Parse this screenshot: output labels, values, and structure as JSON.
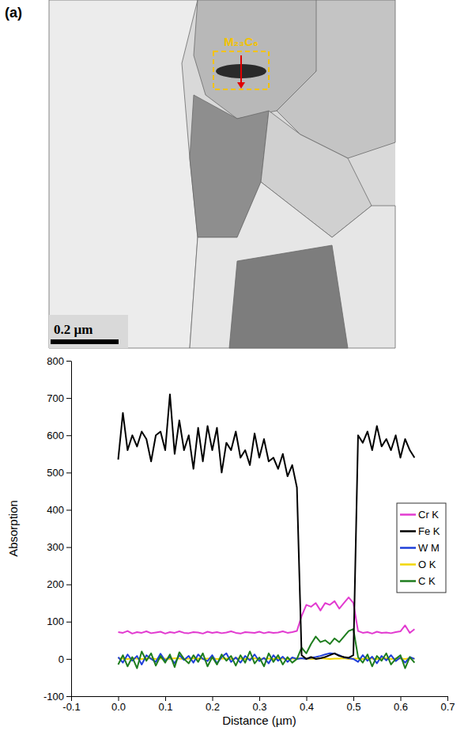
{
  "image_panel": {
    "panel_label": "(a)",
    "annotation": "M₂₃C₆",
    "scale_bar": "0.2 µm"
  },
  "chart_data": {
    "type": "line",
    "x_label": "Distance (µm)",
    "y_label": "Absorption",
    "xlim": [
      -0.1,
      0.7
    ],
    "xticks": [
      -0.1,
      {
        "value": 0,
        "label": "0.0"
      },
      0.1,
      0.2,
      0.3,
      0.4,
      0.5,
      0.6,
      0.7
    ],
    "ylim": [
      -100,
      800
    ],
    "yticks": [
      -100,
      0,
      100,
      200,
      300,
      400,
      500,
      600,
      700,
      800
    ],
    "legend": "right",
    "x": [
      0,
      0.01,
      0.02,
      0.03,
      0.04,
      0.05,
      0.06,
      0.07,
      0.08,
      0.09,
      0.1,
      0.11,
      0.12,
      0.13,
      0.14,
      0.15,
      0.16,
      0.17,
      0.18,
      0.19,
      0.2,
      0.21,
      0.22,
      0.23,
      0.24,
      0.25,
      0.26,
      0.27,
      0.28,
      0.29,
      0.3,
      0.31,
      0.32,
      0.33,
      0.34,
      0.35,
      0.36,
      0.37,
      0.38,
      0.39,
      0.4,
      0.41,
      0.42,
      0.43,
      0.44,
      0.45,
      0.46,
      0.47,
      0.48,
      0.49,
      0.5,
      0.51,
      0.52,
      0.53,
      0.54,
      0.55,
      0.56,
      0.57,
      0.58,
      0.59,
      0.6,
      0.61,
      0.62,
      0.63
    ],
    "series": [
      {
        "name": "Cr K",
        "color": "#e23ad0",
        "values": [
          72,
          70,
          75,
          68,
          72,
          70,
          74,
          69,
          71,
          73,
          68,
          72,
          70,
          74,
          70,
          69,
          72,
          71,
          68,
          73,
          70,
          72,
          69,
          71,
          74,
          70,
          68,
          72,
          71,
          70,
          73,
          69,
          72,
          70,
          71,
          74,
          70,
          72,
          75,
          115,
          145,
          140,
          150,
          130,
          150,
          145,
          155,
          135,
          150,
          165,
          150,
          75,
          70,
          72,
          68,
          73,
          70,
          71,
          69,
          72,
          74,
          90,
          70,
          80
        ]
      },
      {
        "name": "Fe K",
        "color": "#000000",
        "values": [
          535,
          660,
          560,
          600,
          570,
          610,
          590,
          530,
          600,
          610,
          560,
          710,
          550,
          640,
          560,
          600,
          510,
          620,
          530,
          625,
          560,
          620,
          500,
          580,
          560,
          610,
          540,
          560,
          520,
          605,
          540,
          590,
          530,
          540,
          510,
          550,
          490,
          520,
          460,
          10,
          0,
          5,
          0,
          2,
          5,
          10,
          15,
          8,
          5,
          3,
          10,
          600,
          580,
          610,
          560,
          625,
          570,
          590,
          560,
          600,
          540,
          590,
          560,
          540
        ]
      },
      {
        "name": "W M",
        "color": "#1f3fd8",
        "values": [
          5,
          -10,
          12,
          -5,
          8,
          -15,
          10,
          0,
          -8,
          14,
          -5,
          6,
          -12,
          10,
          -3,
          8,
          -10,
          12,
          0,
          -6,
          10,
          -12,
          5,
          15,
          -8,
          4,
          -10,
          8,
          -4,
          12,
          -6,
          3,
          -12,
          10,
          -5,
          6,
          -8,
          4,
          0,
          2,
          0,
          3,
          5,
          8,
          12,
          15,
          14,
          10,
          4,
          2,
          0,
          -8,
          10,
          -5,
          6,
          -12,
          8,
          -4,
          10,
          -6,
          4,
          -10,
          5,
          0
        ]
      },
      {
        "name": "O K",
        "color": "#f2d600",
        "values": [
          2,
          1,
          0,
          2,
          1,
          0,
          1,
          2,
          0,
          1,
          1,
          0,
          2,
          1,
          0,
          1,
          2,
          1,
          0,
          1,
          2,
          0,
          1,
          1,
          0,
          2,
          1,
          0,
          1,
          2,
          0,
          1,
          1,
          0,
          2,
          1,
          0,
          1,
          1,
          2,
          1,
          0,
          1,
          2,
          1,
          0,
          1,
          1,
          2,
          0,
          1,
          1,
          0,
          2,
          1,
          0,
          1,
          2,
          0,
          1,
          1,
          0,
          2,
          1
        ]
      },
      {
        "name": "C K",
        "color": "#1e7d1e",
        "values": [
          -15,
          10,
          -20,
          5,
          -25,
          20,
          -5,
          15,
          -18,
          8,
          -10,
          12,
          -22,
          18,
          0,
          -12,
          10,
          -8,
          15,
          -20,
          5,
          -15,
          12,
          -5,
          8,
          -18,
          10,
          -10,
          20,
          -12,
          4,
          -20,
          15,
          -8,
          10,
          -15,
          5,
          -10,
          0,
          30,
          15,
          40,
          60,
          45,
          50,
          40,
          55,
          45,
          60,
          75,
          80,
          5,
          -10,
          12,
          -20,
          8,
          -5,
          15,
          -15,
          0,
          10,
          -25,
          5,
          -10
        ]
      }
    ]
  }
}
